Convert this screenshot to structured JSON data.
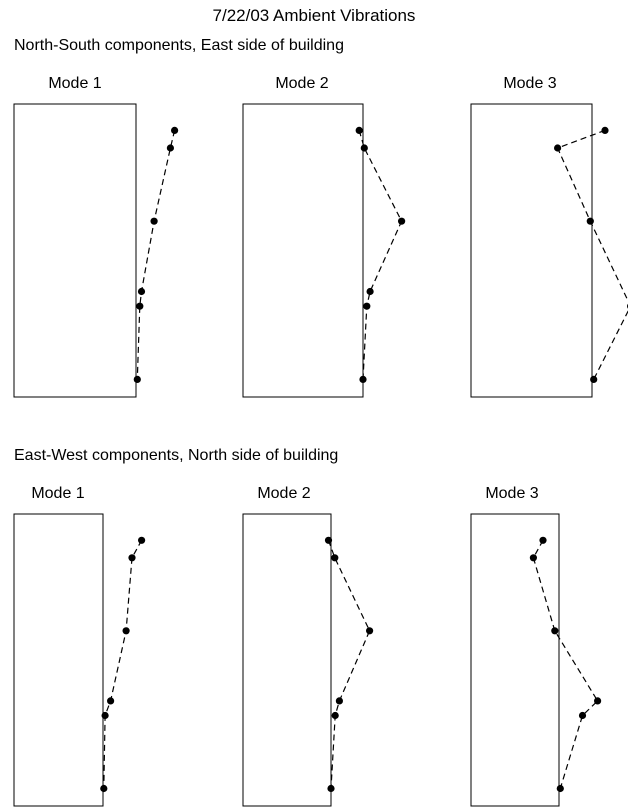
{
  "title": "7/22/03 Ambient Vibrations",
  "sections": [
    {
      "heading": "North-South components, East side of building",
      "modes": [
        {
          "label": "Mode 1"
        },
        {
          "label": "Mode 2"
        },
        {
          "label": "Mode 3"
        }
      ]
    },
    {
      "heading": "East-West components, North side of building",
      "modes": [
        {
          "label": "Mode 1"
        },
        {
          "label": "Mode 2"
        },
        {
          "label": "Mode 3"
        }
      ]
    }
  ],
  "colors": {
    "line": "#000000",
    "frame": "#000000",
    "background": "#ffffff"
  },
  "chart_data": [
    {
      "type": "line",
      "title": "Mode 1",
      "group": "North-South components, East side of building",
      "series": [
        {
          "points": [
            [
              0.92,
              0.91
            ],
            [
              0.82,
              0.85
            ],
            [
              0.43,
              0.6
            ],
            [
              0.13,
              0.36
            ],
            [
              0.09,
              0.31
            ],
            [
              0.03,
              0.06
            ]
          ]
        }
      ]
    },
    {
      "type": "line",
      "title": "Mode 2",
      "group": "North-South components, East side of building",
      "series": [
        {
          "points": [
            [
              -0.09,
              0.91
            ],
            [
              0.03,
              0.85
            ],
            [
              0.92,
              0.6
            ],
            [
              0.17,
              0.36
            ],
            [
              0.09,
              0.31
            ],
            [
              0.0,
              0.06
            ]
          ]
        }
      ]
    },
    {
      "type": "line",
      "title": "Mode 3",
      "group": "North-South components, East side of building",
      "series": [
        {
          "points": [
            [
              0.31,
              0.91
            ],
            [
              -0.82,
              0.85
            ],
            [
              -0.04,
              0.6
            ],
            [
              0.92,
              0.31
            ],
            [
              0.04,
              0.06
            ]
          ]
        }
      ]
    },
    {
      "type": "line",
      "title": "Mode 1",
      "group": "East-West components, North side of building",
      "series": [
        {
          "points": [
            [
              0.92,
              0.91
            ],
            [
              0.69,
              0.85
            ],
            [
              0.55,
              0.6
            ],
            [
              0.18,
              0.36
            ],
            [
              0.05,
              0.31
            ],
            [
              0.02,
              0.06
            ]
          ]
        }
      ]
    },
    {
      "type": "line",
      "title": "Mode 2",
      "group": "East-West components, North side of building",
      "series": [
        {
          "points": [
            [
              -0.06,
              0.91
            ],
            [
              0.09,
              0.85
            ],
            [
              0.92,
              0.6
            ],
            [
              0.2,
              0.36
            ],
            [
              0.1,
              0.31
            ],
            [
              0.0,
              0.06
            ]
          ]
        }
      ]
    },
    {
      "type": "line",
      "title": "Mode 3",
      "group": "East-West components, North side of building",
      "series": [
        {
          "points": [
            [
              -0.38,
              0.91
            ],
            [
              -0.61,
              0.85
            ],
            [
              -0.1,
              0.6
            ],
            [
              0.92,
              0.36
            ],
            [
              0.56,
              0.31
            ],
            [
              0.03,
              0.06
            ]
          ]
        }
      ]
    }
  ]
}
